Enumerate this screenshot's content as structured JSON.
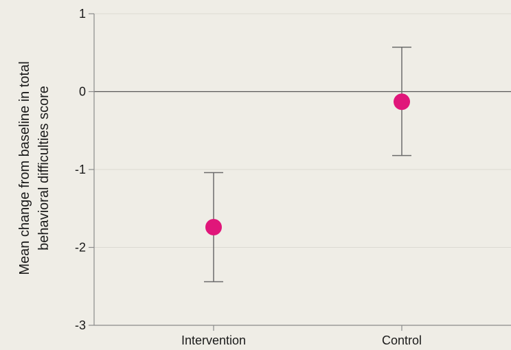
{
  "chart_data": {
    "type": "scatter",
    "title": "",
    "xlabel": "",
    "ylabel_lines": [
      "Mean change from baseline in total",
      "behavioral difficulties score"
    ],
    "categories": [
      "Intervention",
      "Control"
    ],
    "values": [
      -1.74,
      -0.13
    ],
    "error_low": [
      -2.44,
      -0.82
    ],
    "error_high": [
      -1.04,
      0.57
    ],
    "ylim": [
      -3,
      1
    ],
    "yticks": [
      1,
      0,
      -1,
      -2,
      -3
    ],
    "ytick_labels": [
      "1",
      "0",
      "-1",
      "-2",
      "-3"
    ],
    "grid": true,
    "zero_line": true,
    "legend": "none",
    "colors": {
      "marker": "#e0167a",
      "errorbar": "#6b6b6b",
      "grid": "#dcdad2",
      "axis": "#8a8a8a",
      "background": "#efede6"
    }
  }
}
